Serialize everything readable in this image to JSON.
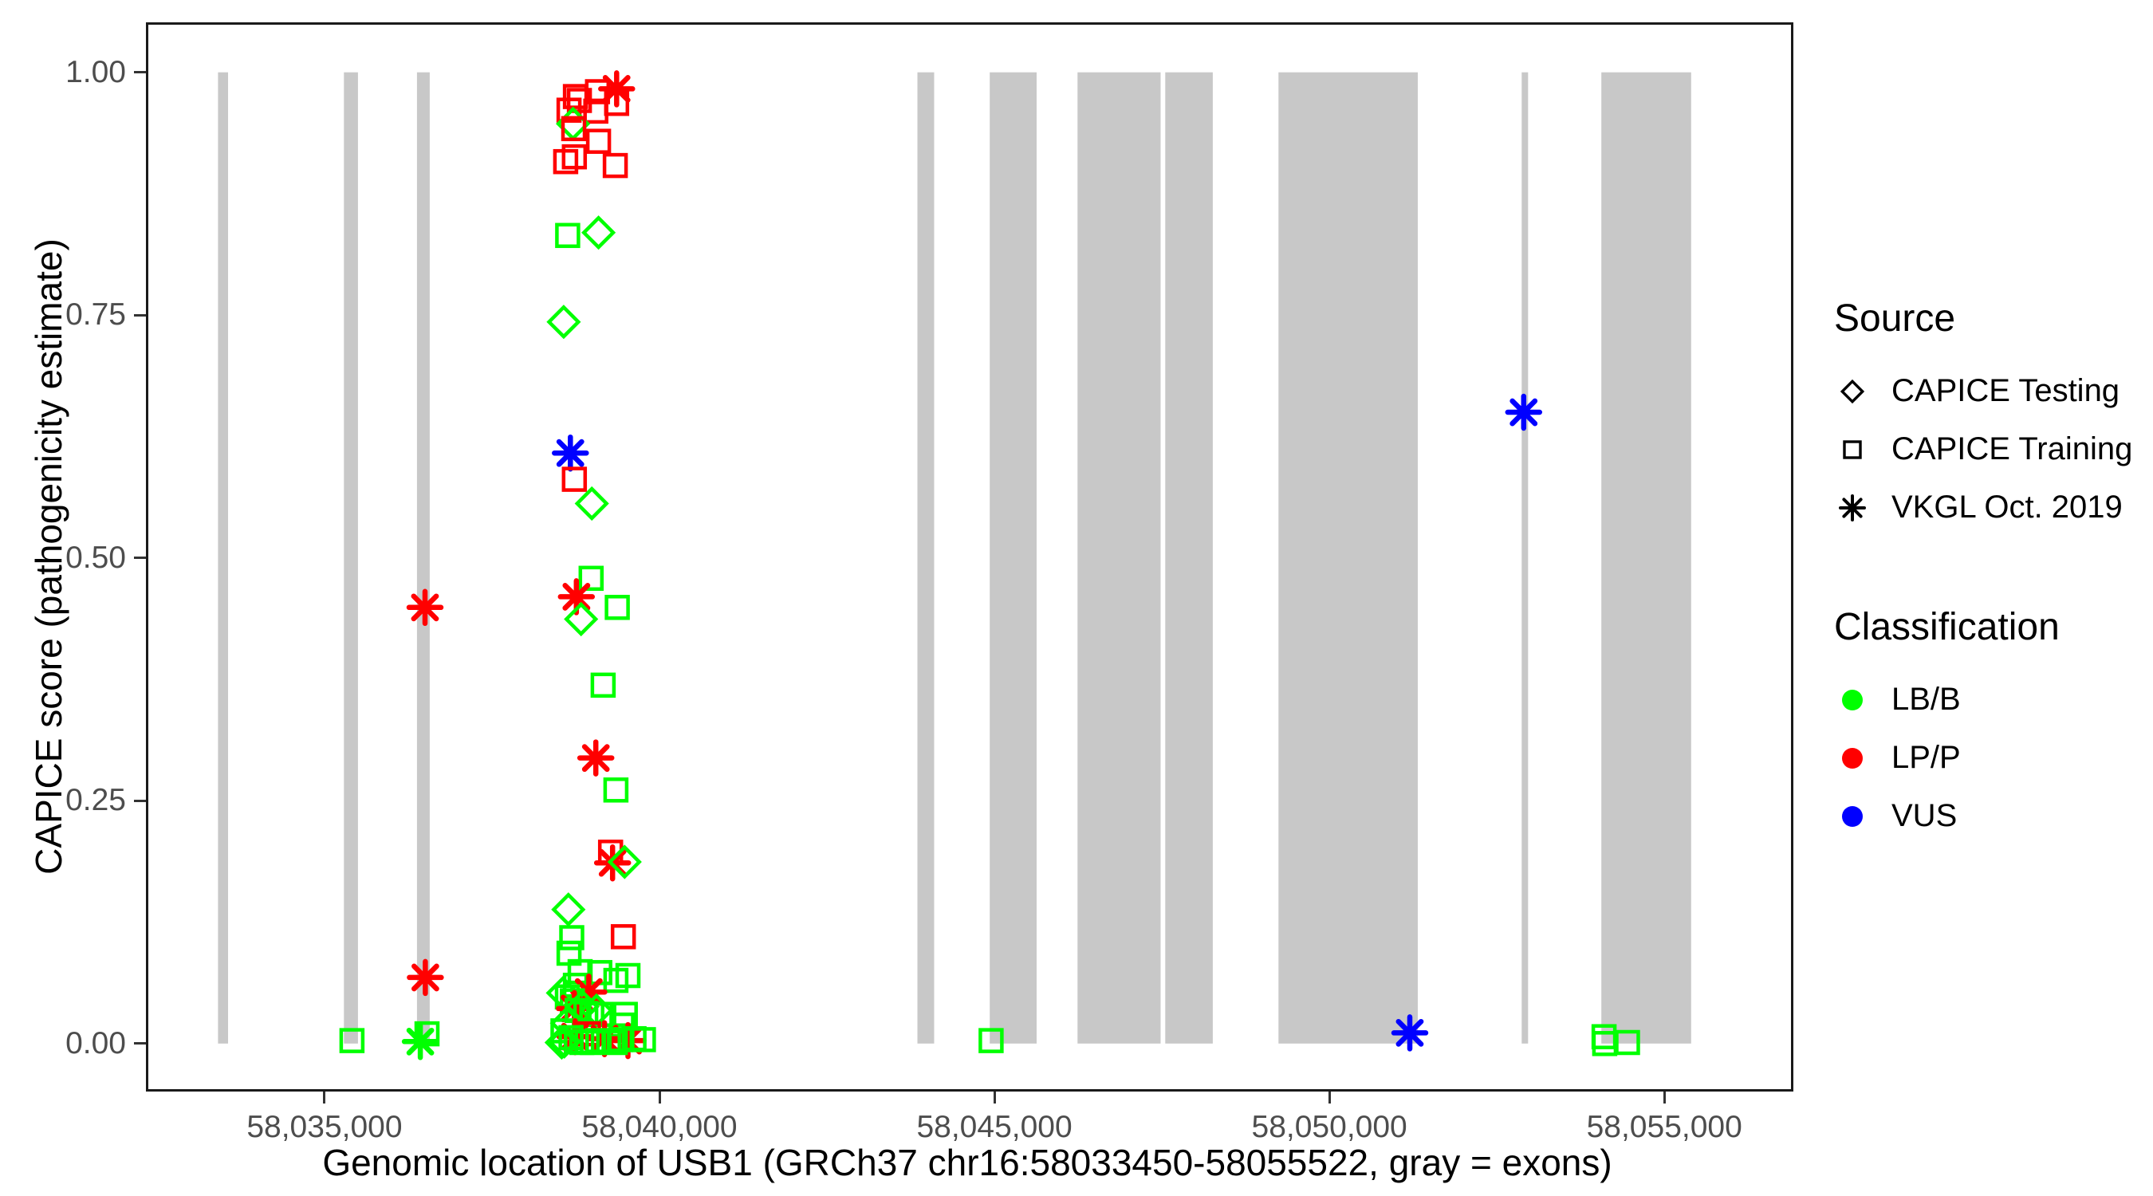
{
  "page": {
    "background": "#FFFFFF"
  },
  "y_axis": {
    "title": "CAPICE score (pathogenicity estimate)",
    "tick_labels": [
      "1.00",
      "0.75",
      "0.50",
      "0.25",
      "0.00"
    ]
  },
  "x_axis": {
    "title": "Genomic location of USB1 (GRCh37 chr16:58033450-58055522, gray = exons)",
    "tick_labels": [
      "58,035,000",
      "58,040,000",
      "58,045,000",
      "58,050,000",
      "58,055,000"
    ]
  },
  "legend": {
    "source": {
      "title": "Source",
      "items": [
        {
          "label": "CAPICE Testing",
          "shape": "diamond-icon"
        },
        {
          "label": "CAPICE Training",
          "shape": "square-icon"
        },
        {
          "label": "VKGL Oct. 2019",
          "shape": "asterisk-icon"
        }
      ]
    },
    "classification": {
      "title": "Classification",
      "items": [
        {
          "label": "LB/B",
          "color": "#00FF00"
        },
        {
          "label": "LP/P",
          "color": "#FF0000"
        },
        {
          "label": "VUS",
          "color": "#0000FF"
        }
      ]
    }
  },
  "chart_data": {
    "type": "scatter",
    "xlabel": "Genomic location of USB1 (GRCh37 chr16:58033450-58055522, gray = exons)",
    "ylabel": "CAPICE score (pathogenicity estimate)",
    "x_domain": [
      58032370,
      58056890
    ],
    "y_domain": [
      -0.047,
      1.049
    ],
    "x_ticks": [
      58035000,
      58040000,
      58045000,
      58050000,
      58055000
    ],
    "y_ticks": [
      1.0,
      0.75,
      0.5,
      0.25,
      0.0
    ],
    "grid": false,
    "legend_position": "right",
    "exon_color": "#C8C8C8",
    "exons": [
      [
        58033410,
        58033560
      ],
      [
        58035290,
        58035500
      ],
      [
        58036380,
        58036570
      ],
      [
        58043850,
        58044100
      ],
      [
        58044930,
        58045630
      ],
      [
        58046240,
        58047480
      ],
      [
        58047550,
        58048260
      ],
      [
        58049240,
        58051320
      ],
      [
        58052870,
        58052965
      ],
      [
        58054060,
        58055400
      ]
    ],
    "sources": [
      "CAPICE Testing",
      "CAPICE Training",
      "VKGL Oct. 2019"
    ],
    "source_shapes": [
      "diamond",
      "square",
      "asterisk"
    ],
    "classifications": [
      "LB/B",
      "LP/P",
      "VUS"
    ],
    "classification_colors": [
      "#00FF00",
      "#FF0000",
      "#0000FF"
    ],
    "points": [
      [
        58038745,
        0.975,
        1,
        1
      ],
      [
        58038805,
        0.971,
        1,
        1
      ],
      [
        58039075,
        0.98,
        1,
        1
      ],
      [
        58039360,
        0.983,
        2,
        1
      ],
      [
        58039360,
        0.968,
        1,
        1
      ],
      [
        58038650,
        0.961,
        1,
        1
      ],
      [
        58039050,
        0.96,
        1,
        1
      ],
      [
        58038710,
        0.947,
        0,
        0
      ],
      [
        58038720,
        0.942,
        1,
        1
      ],
      [
        58039090,
        0.929,
        1,
        1
      ],
      [
        58038600,
        0.908,
        1,
        1
      ],
      [
        58038730,
        0.913,
        1,
        1
      ],
      [
        58039340,
        0.904,
        1,
        1
      ],
      [
        58038630,
        0.832,
        1,
        0
      ],
      [
        58039090,
        0.835,
        0,
        0
      ],
      [
        58038570,
        0.743,
        0,
        0
      ],
      [
        58038670,
        0.608,
        2,
        2
      ],
      [
        58038730,
        0.581,
        1,
        1
      ],
      [
        58038990,
        0.556,
        0,
        0
      ],
      [
        58038980,
        0.479,
        1,
        0
      ],
      [
        58038760,
        0.46,
        2,
        1
      ],
      [
        58036500,
        0.449,
        2,
        1
      ],
      [
        58039370,
        0.449,
        1,
        0
      ],
      [
        58038830,
        0.437,
        0,
        0
      ],
      [
        58039160,
        0.369,
        1,
        0
      ],
      [
        58039050,
        0.294,
        2,
        1
      ],
      [
        58039350,
        0.261,
        1,
        0
      ],
      [
        58039270,
        0.197,
        1,
        1
      ],
      [
        58039300,
        0.186,
        2,
        1
      ],
      [
        58039480,
        0.187,
        0,
        0
      ],
      [
        58038640,
        0.138,
        0,
        0
      ],
      [
        58038690,
        0.109,
        1,
        0
      ],
      [
        58039460,
        0.11,
        1,
        1
      ],
      [
        58038650,
        0.093,
        1,
        0
      ],
      [
        58036505,
        0.068,
        2,
        1
      ],
      [
        58038815,
        0.074,
        1,
        0
      ],
      [
        58039110,
        0.073,
        1,
        0
      ],
      [
        58039530,
        0.07,
        1,
        0
      ],
      [
        58039350,
        0.065,
        1,
        0
      ],
      [
        58038745,
        0.06,
        1,
        0
      ],
      [
        58038560,
        0.052,
        0,
        0
      ],
      [
        58038945,
        0.053,
        2,
        1
      ],
      [
        58038625,
        0.048,
        1,
        0
      ],
      [
        58038700,
        0.044,
        1,
        0
      ],
      [
        58038730,
        0.036,
        2,
        1
      ],
      [
        58038770,
        0.034,
        1,
        0
      ],
      [
        58038850,
        0.038,
        0,
        0
      ],
      [
        58038900,
        0.031,
        1,
        0
      ],
      [
        58038990,
        0.03,
        1,
        0
      ],
      [
        58039060,
        0.034,
        0,
        0
      ],
      [
        58039120,
        0.03,
        1,
        0
      ],
      [
        58039490,
        0.03,
        1,
        0
      ],
      [
        58039440,
        0.019,
        1,
        0
      ],
      [
        58038620,
        0.021,
        0,
        0
      ],
      [
        58038560,
        0.013,
        1,
        0
      ],
      [
        58038940,
        0.01,
        1,
        1
      ],
      [
        58038740,
        0.007,
        2,
        1
      ],
      [
        58039180,
        0.005,
        2,
        1
      ],
      [
        58039530,
        0.003,
        2,
        1
      ],
      [
        58038580,
        0.002,
        0,
        0
      ],
      [
        58038680,
        0.006,
        1,
        0
      ],
      [
        58038760,
        0.002,
        1,
        0
      ],
      [
        58038840,
        0.001,
        1,
        0
      ],
      [
        58038920,
        0.002,
        1,
        0
      ],
      [
        58039000,
        0.001,
        1,
        0
      ],
      [
        58039080,
        0.003,
        1,
        0
      ],
      [
        58039240,
        0.002,
        1,
        0
      ],
      [
        58039340,
        0.001,
        1,
        0
      ],
      [
        58039420,
        0.004,
        1,
        0
      ],
      [
        58039620,
        0.005,
        1,
        0
      ],
      [
        58039760,
        0.004,
        1,
        0
      ],
      [
        58038540,
        0.001,
        0,
        0
      ],
      [
        58035410,
        0.003,
        1,
        0
      ],
      [
        58036430,
        0.002,
        2,
        0
      ],
      [
        58036530,
        0.01,
        1,
        0
      ],
      [
        58044950,
        0.003,
        1,
        0
      ],
      [
        58051200,
        0.011,
        2,
        2
      ],
      [
        58052900,
        0.65,
        2,
        2
      ],
      [
        58054100,
        0.007,
        1,
        0
      ],
      [
        58054110,
        0.0,
        1,
        0
      ],
      [
        58054450,
        0.001,
        1,
        0
      ]
    ]
  }
}
